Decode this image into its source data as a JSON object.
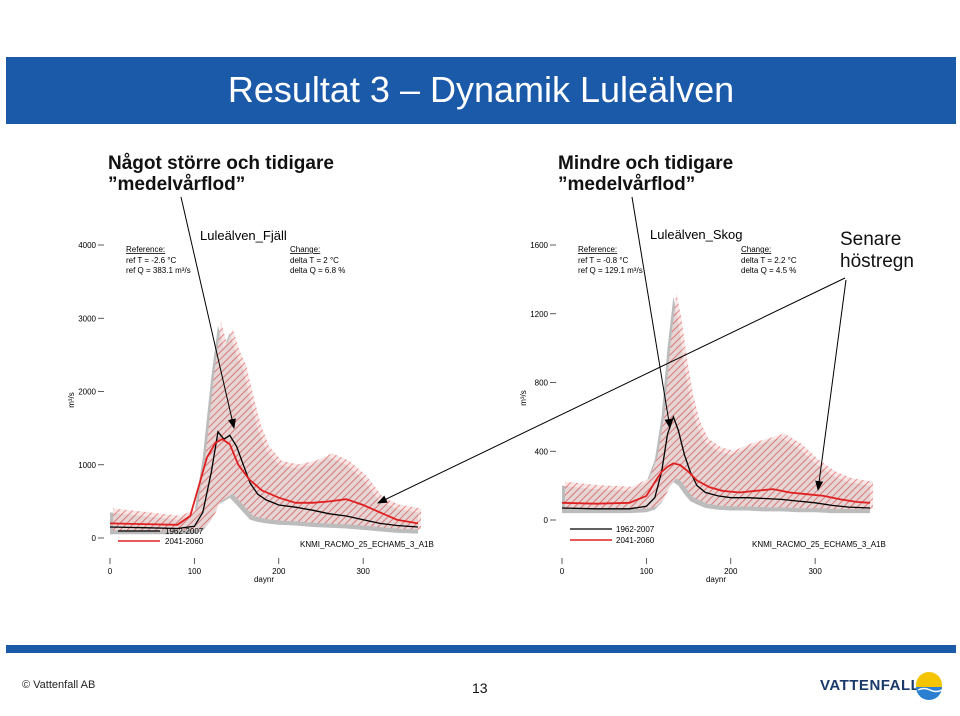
{
  "slide": {
    "title": "Resultat 3 – Dynamik Luleälven",
    "note_left": "Något större och tidigare\n”medelvårflod”",
    "note_mid": "Mindre och tidigare\n”medelvårflod”",
    "note_right": "Senare\nhöstregn",
    "copyright": "© Vattenfall AB",
    "page_number": "13",
    "logo": "VATTENFALL"
  },
  "colors": {
    "brand_blue": "#1a5aa8",
    "ref_line": "#000000",
    "future_line": "#e02020",
    "band_grey": "#b0b0b0",
    "band_red": "#e06060"
  },
  "chart_data": [
    {
      "type": "line",
      "title": "Luleälven_Fjäll",
      "xlabel": "daynr",
      "ylabel": "m³/s",
      "xlim": [
        0,
        365
      ],
      "ylim": [
        0,
        4000
      ],
      "xticks": [
        "0",
        "100",
        "200",
        "300"
      ],
      "yticks": [
        "0",
        "1000",
        "2000",
        "3000",
        "4000"
      ],
      "reference_header": "Reference:",
      "reference_lines": [
        "ref T = -2.6 °C",
        "ref Q = 383.1 m³/s"
      ],
      "change_header": "Change:",
      "change_lines": [
        "delta T = 2 °C",
        "delta Q = 6.8 %"
      ],
      "model": "KNMI_RACMO_25_ECHAM5_3_A1B",
      "legend_position": "bottom-left",
      "series": [
        {
          "name": "1962-2007",
          "color": "#000000",
          "x": [
            0,
            40,
            80,
            100,
            110,
            120,
            128,
            135,
            142,
            150,
            158,
            166,
            175,
            185,
            200,
            220,
            240,
            260,
            280,
            300,
            320,
            340,
            365
          ],
          "y": [
            150,
            140,
            130,
            160,
            350,
            900,
            1450,
            1350,
            1400,
            1250,
            1000,
            750,
            600,
            520,
            450,
            420,
            380,
            330,
            300,
            250,
            200,
            170,
            150
          ]
        },
        {
          "name": "2041-2060",
          "color": "#e02020",
          "x": [
            0,
            40,
            80,
            95,
            105,
            115,
            125,
            133,
            142,
            152,
            165,
            180,
            200,
            220,
            240,
            260,
            280,
            300,
            320,
            340,
            365
          ],
          "y": [
            200,
            190,
            180,
            300,
            700,
            1100,
            1300,
            1350,
            1280,
            1000,
            800,
            650,
            550,
            480,
            480,
            500,
            530,
            450,
            350,
            250,
            200
          ]
        }
      ],
      "band_upper": {
        "x": [
          0,
          40,
          80,
          100,
          110,
          120,
          128,
          135,
          142,
          150,
          158,
          166,
          175,
          185,
          200,
          220,
          240,
          260,
          280,
          300,
          320,
          340,
          365
        ],
        "y": [
          350,
          300,
          250,
          350,
          1100,
          2200,
          2900,
          2600,
          2800,
          2500,
          2300,
          1900,
          1500,
          1200,
          1000,
          950,
          1000,
          1100,
          1000,
          800,
          500,
          400,
          350
        ]
      },
      "band_lower": {
        "x": [
          0,
          40,
          80,
          100,
          110,
          120,
          128,
          135,
          142,
          150,
          158,
          166,
          175,
          185,
          200,
          220,
          240,
          260,
          280,
          300,
          320,
          340,
          365
        ],
        "y": [
          50,
          50,
          50,
          60,
          100,
          250,
          450,
          500,
          550,
          450,
          350,
          250,
          220,
          200,
          180,
          170,
          150,
          140,
          130,
          110,
          90,
          70,
          60
        ]
      }
    },
    {
      "type": "line",
      "title": "Luleälven_Skog",
      "xlabel": "daynr",
      "ylabel": "m³/s",
      "xlim": [
        0,
        365
      ],
      "ylim": [
        0,
        1600
      ],
      "xticks": [
        "0",
        "100",
        "200",
        "300"
      ],
      "yticks": [
        "0",
        "400",
        "800",
        "1200",
        "1600"
      ],
      "reference_header": "Reference:",
      "reference_lines": [
        "ref T = -0.8 °C",
        "ref Q = 129.1 m³/s"
      ],
      "change_header": "Change:",
      "change_lines": [
        "delta T = 2.2 °C",
        "delta Q = 4.5 %"
      ],
      "model": "KNMI_RACMO_25_ECHAM5_3_A1B",
      "legend_position": "bottom-left",
      "series": [
        {
          "name": "1962-2007",
          "color": "#000000",
          "x": [
            0,
            40,
            80,
            100,
            110,
            118,
            125,
            132,
            138,
            145,
            152,
            160,
            170,
            185,
            200,
            220,
            240,
            260,
            280,
            300,
            320,
            340,
            365
          ],
          "y": [
            70,
            65,
            65,
            80,
            130,
            280,
            500,
            600,
            520,
            380,
            280,
            200,
            160,
            140,
            130,
            130,
            125,
            120,
            110,
            100,
            85,
            75,
            70
          ]
        },
        {
          "name": "2041-2060",
          "color": "#e02020",
          "x": [
            0,
            40,
            80,
            100,
            110,
            118,
            125,
            132,
            140,
            150,
            160,
            175,
            190,
            210,
            230,
            250,
            270,
            290,
            310,
            330,
            350,
            365
          ],
          "y": [
            100,
            95,
            100,
            140,
            220,
            280,
            310,
            330,
            320,
            280,
            230,
            190,
            170,
            160,
            170,
            180,
            160,
            150,
            140,
            120,
            105,
            100
          ]
        }
      ],
      "band_upper": {
        "x": [
          0,
          40,
          80,
          100,
          110,
          118,
          125,
          132,
          138,
          145,
          152,
          160,
          170,
          185,
          200,
          220,
          240,
          260,
          280,
          300,
          320,
          340,
          365
        ],
        "y": [
          200,
          180,
          170,
          220,
          350,
          600,
          1000,
          1300,
          1150,
          900,
          700,
          550,
          450,
          400,
          380,
          420,
          450,
          480,
          420,
          330,
          260,
          220,
          200
        ]
      },
      "band_lower": {
        "x": [
          0,
          40,
          80,
          100,
          110,
          118,
          125,
          132,
          138,
          145,
          152,
          160,
          170,
          185,
          200,
          220,
          240,
          260,
          280,
          300,
          320,
          340,
          365
        ],
        "y": [
          40,
          40,
          40,
          45,
          60,
          100,
          180,
          220,
          200,
          150,
          110,
          90,
          70,
          60,
          55,
          55,
          50,
          50,
          45,
          45,
          40,
          40,
          40
        ]
      }
    }
  ]
}
